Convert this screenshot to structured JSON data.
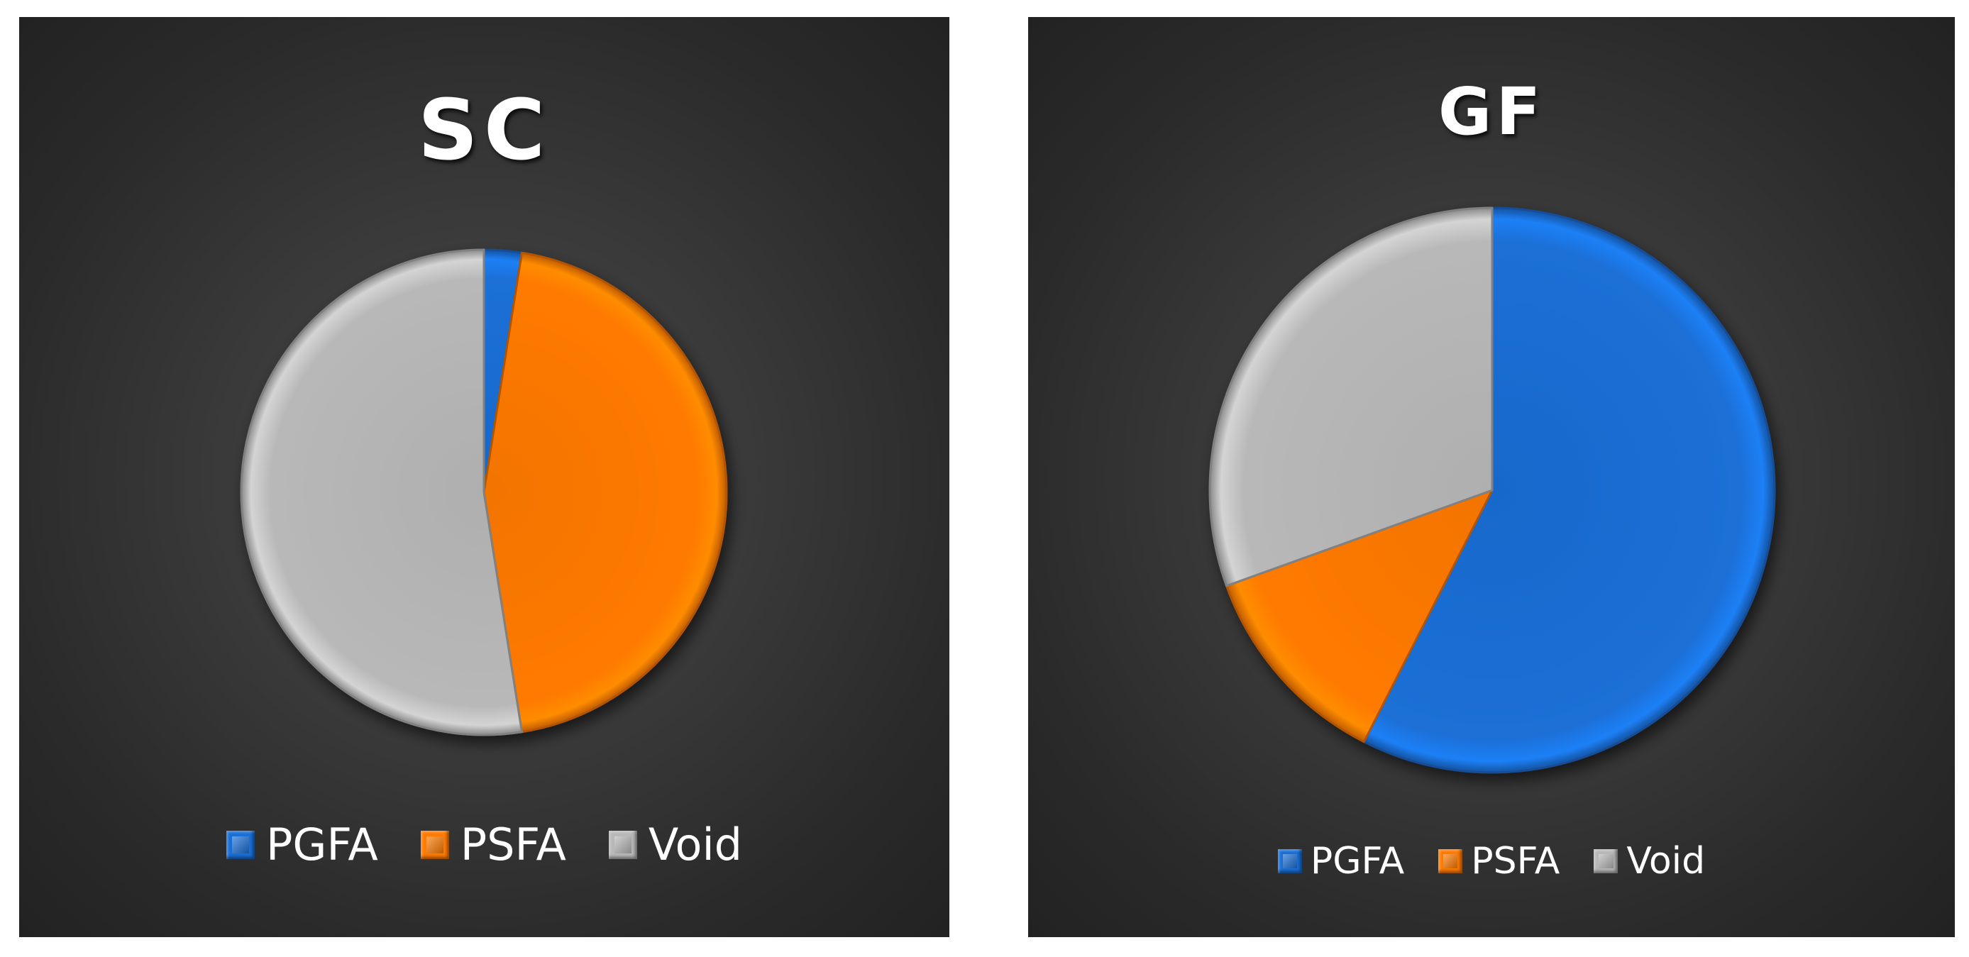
{
  "chart_data": [
    {
      "type": "pie",
      "title": "SC",
      "categories": [
        "PGFA",
        "PSFA",
        "Void"
      ],
      "values": [
        2.5,
        45.0,
        52.5
      ],
      "colors": [
        "#1a6fd6",
        "#ff7a00",
        "#b8b8b8"
      ],
      "legend_position": "bottom"
    },
    {
      "type": "pie",
      "title": "GF",
      "categories": [
        "PGFA",
        "PSFA",
        "Void"
      ],
      "values": [
        57.5,
        12.0,
        30.5
      ],
      "colors": [
        "#1a6fd6",
        "#ff7a00",
        "#b8b8b8"
      ],
      "legend_position": "bottom"
    }
  ]
}
